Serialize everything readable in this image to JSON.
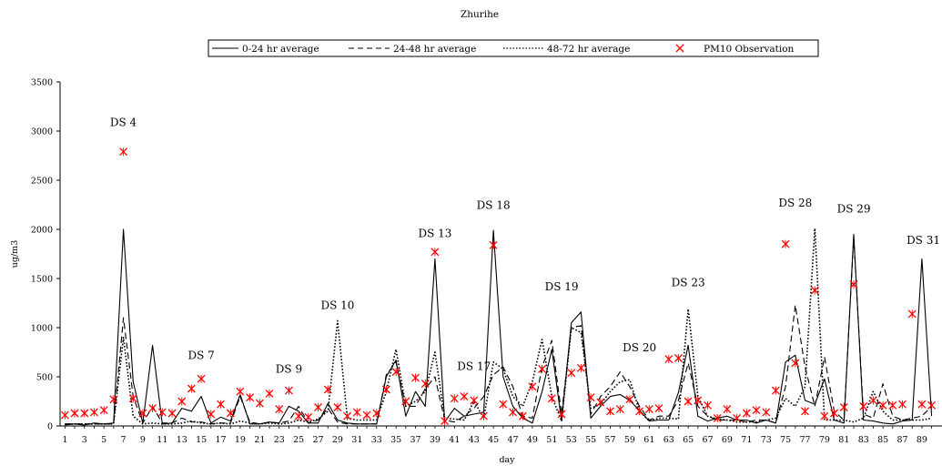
{
  "chart_data": {
    "type": "line",
    "title": "Zhurihe",
    "xlabel": "day",
    "ylabel": "ug/m3",
    "ylim": [
      0,
      3500
    ],
    "yticks": [
      0,
      500,
      1000,
      1500,
      2000,
      2500,
      3000,
      3500
    ],
    "xlim": [
      1,
      90
    ],
    "xticks": [
      1,
      3,
      5,
      7,
      9,
      11,
      13,
      15,
      17,
      19,
      21,
      23,
      25,
      27,
      29,
      31,
      33,
      35,
      37,
      39,
      41,
      43,
      45,
      47,
      49,
      51,
      53,
      55,
      57,
      59,
      61,
      63,
      65,
      67,
      69,
      71,
      73,
      75,
      77,
      79,
      81,
      83,
      85,
      87,
      89
    ],
    "grid": false,
    "legend_position": "top",
    "x": [
      1,
      2,
      3,
      4,
      5,
      6,
      7,
      8,
      9,
      10,
      11,
      12,
      13,
      14,
      15,
      16,
      17,
      18,
      19,
      20,
      21,
      22,
      23,
      24,
      25,
      26,
      27,
      28,
      29,
      30,
      31,
      32,
      33,
      34,
      35,
      36,
      37,
      38,
      39,
      40,
      41,
      42,
      43,
      44,
      45,
      46,
      47,
      48,
      49,
      50,
      51,
      52,
      53,
      54,
      55,
      56,
      57,
      58,
      59,
      60,
      61,
      62,
      63,
      64,
      65,
      66,
      67,
      68,
      69,
      70,
      71,
      72,
      73,
      74,
      75,
      76,
      77,
      78,
      79,
      80,
      81,
      82,
      83,
      84,
      85,
      86,
      87,
      88,
      89,
      90
    ],
    "series": [
      {
        "name": "0-24 hr average",
        "style": "solid",
        "color": "#000000",
        "values": [
          10,
          20,
          10,
          30,
          20,
          30,
          2000,
          450,
          30,
          820,
          20,
          30,
          180,
          150,
          300,
          30,
          90,
          50,
          320,
          20,
          20,
          40,
          30,
          200,
          150,
          30,
          30,
          230,
          60,
          30,
          20,
          20,
          20,
          500,
          670,
          100,
          350,
          200,
          1700,
          40,
          180,
          100,
          120,
          140,
          1990,
          500,
          200,
          80,
          30,
          350,
          780,
          50,
          1050,
          1160,
          80,
          200,
          300,
          320,
          260,
          160,
          50,
          60,
          60,
          340,
          820,
          100,
          50,
          80,
          100,
          60,
          60,
          30,
          60,
          30,
          650,
          720,
          260,
          220,
          480,
          60,
          30,
          1950,
          60,
          50,
          30,
          20,
          50,
          60,
          1700,
          100
        ]
      },
      {
        "name": "24-48 hr average",
        "style": "dashed",
        "color": "#000000",
        "values": [
          20,
          20,
          20,
          20,
          20,
          20,
          1100,
          300,
          30,
          200,
          30,
          30,
          80,
          40,
          40,
          20,
          30,
          30,
          300,
          40,
          20,
          40,
          30,
          50,
          200,
          30,
          60,
          180,
          40,
          20,
          20,
          20,
          20,
          520,
          650,
          200,
          200,
          380,
          500,
          60,
          40,
          100,
          180,
          300,
          520,
          600,
          400,
          100,
          80,
          600,
          870,
          120,
          1000,
          1020,
          120,
          300,
          400,
          550,
          400,
          200,
          60,
          100,
          100,
          260,
          640,
          200,
          100,
          60,
          60,
          60,
          40,
          60,
          60,
          30,
          400,
          1230,
          600,
          200,
          700,
          150,
          60,
          1920,
          120,
          80,
          430,
          100,
          60,
          80,
          100,
          200
        ]
      },
      {
        "name": "48-72 hr average",
        "style": "dotted",
        "color": "#000000",
        "values": [
          20,
          20,
          20,
          20,
          20,
          20,
          900,
          100,
          20,
          30,
          20,
          20,
          30,
          50,
          30,
          20,
          30,
          20,
          50,
          30,
          20,
          30,
          20,
          30,
          60,
          40,
          70,
          150,
          1070,
          80,
          60,
          60,
          60,
          350,
          780,
          200,
          250,
          350,
          750,
          80,
          70,
          60,
          250,
          80,
          650,
          580,
          300,
          200,
          450,
          880,
          300,
          50,
          1000,
          950,
          180,
          220,
          350,
          450,
          470,
          150,
          50,
          80,
          80,
          70,
          1190,
          300,
          100,
          70,
          60,
          40,
          40,
          40,
          60,
          80,
          280,
          200,
          400,
          2010,
          60,
          60,
          60,
          40,
          80,
          350,
          150,
          60,
          60,
          60,
          60,
          80
        ]
      },
      {
        "name": "PM10 Observation",
        "style": "marker",
        "marker": "asterisk",
        "color": "#ff0000",
        "values": [
          110,
          130,
          130,
          140,
          160,
          270,
          2790,
          280,
          130,
          180,
          140,
          130,
          250,
          380,
          480,
          120,
          220,
          130,
          350,
          290,
          230,
          330,
          170,
          360,
          100,
          90,
          190,
          370,
          190,
          100,
          140,
          110,
          130,
          370,
          550,
          250,
          490,
          430,
          1770,
          50,
          280,
          300,
          260,
          100,
          1840,
          220,
          140,
          100,
          400,
          580,
          280,
          120,
          540,
          590,
          290,
          240,
          150,
          170,
          270,
          150,
          170,
          180,
          680,
          690,
          250,
          260,
          210,
          80,
          170,
          80,
          130,
          160,
          140,
          360,
          1850,
          640,
          150,
          1380,
          100,
          130,
          190,
          1440,
          200,
          260,
          210,
          210,
          220,
          1140,
          220,
          210
        ]
      }
    ],
    "annotations": [
      {
        "text": "DS 4",
        "x": 7,
        "y": 3050
      },
      {
        "text": "DS 7",
        "x": 15,
        "y": 680
      },
      {
        "text": "DS 9",
        "x": 24,
        "y": 540
      },
      {
        "text": "DS 10",
        "x": 29,
        "y": 1190
      },
      {
        "text": "DS 13",
        "x": 39,
        "y": 1920
      },
      {
        "text": "DS 17",
        "x": 43,
        "y": 570
      },
      {
        "text": "DS 18",
        "x": 45,
        "y": 2210
      },
      {
        "text": "DS 19",
        "x": 52,
        "y": 1380
      },
      {
        "text": "DS 20",
        "x": 60,
        "y": 760
      },
      {
        "text": "DS 23",
        "x": 65,
        "y": 1420
      },
      {
        "text": "DS 28",
        "x": 76,
        "y": 2230
      },
      {
        "text": "DS 29",
        "x": 82,
        "y": 2170
      },
      {
        "text": "DS 31",
        "x": 89,
        "y": 1850
      }
    ]
  }
}
